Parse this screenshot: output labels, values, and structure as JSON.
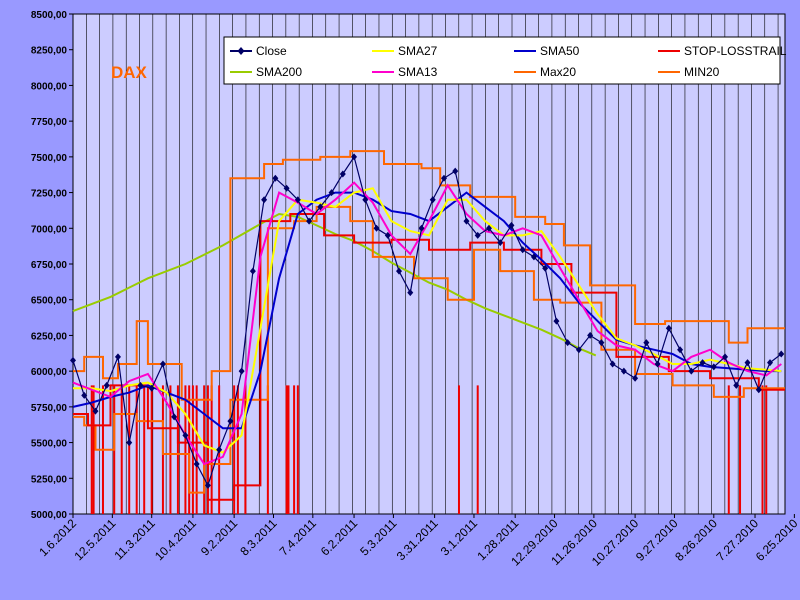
{
  "chart_data": {
    "type": "line",
    "title": "DAX",
    "ylim": [
      5000,
      8500
    ],
    "yticks": [
      "8500,00",
      "8250,00",
      "8000,00",
      "7750,00",
      "7500,00",
      "7250,00",
      "7000,00",
      "6750,00",
      "6500,00",
      "6250,00",
      "6000,00",
      "5750,00",
      "5500,00",
      "5250,00",
      "5000,00"
    ],
    "ytick_values": [
      8500,
      8250,
      8000,
      7750,
      7500,
      7250,
      7000,
      6750,
      6500,
      6250,
      6000,
      5750,
      5500,
      5250,
      5000
    ],
    "xlim": [
      0,
      380
    ],
    "x_tick_labels": [
      "1.6.2012",
      "12.5.2011",
      "11.3.2011",
      "10.4.2011",
      "9.2.2011",
      "8.3.2011",
      "7.4.2011",
      "6.2.2011",
      "5.3.2011",
      "3.31.2011",
      "3.1.2011",
      "1.28.2011",
      "12.29.2010",
      "11.26.2010",
      "10.27.2010",
      "9.27.2010",
      "8.26.2010",
      "7.27.2010",
      "6.25.2010"
    ],
    "x_tick_positions": [
      0,
      21,
      42,
      64,
      86,
      107,
      128,
      150,
      171,
      193,
      214,
      236,
      257,
      278,
      300,
      321,
      342,
      364,
      385
    ],
    "legend": [
      "Close",
      "SMA27",
      "SMA50",
      "STOP-LOSSTRAIL",
      "SMA200",
      "SMA13",
      "Max20",
      "MIN20"
    ],
    "colors": {
      "Close": "#000066",
      "SMA27": "#ffff00",
      "SMA50": "#0000cc",
      "STOP-LOSSTRAIL": "#ee0000",
      "SMA200": "#99cc00",
      "SMA13": "#ff00cc",
      "Max20": "#ff6600",
      "MIN20": "#ff6600",
      "plot_bg": "#ccccff",
      "page_bg": "#9999ff",
      "title": "#ff6600"
    },
    "series": [
      {
        "name": "Close",
        "x": [
          0,
          6,
          12,
          18,
          24,
          30,
          36,
          42,
          48,
          54,
          60,
          66,
          72,
          78,
          84,
          90,
          96,
          102,
          108,
          114,
          120,
          126,
          132,
          138,
          144,
          150,
          156,
          162,
          168,
          174,
          180,
          186,
          192,
          198,
          204,
          210,
          216,
          222,
          228,
          234,
          240,
          246,
          252,
          258,
          264,
          270,
          276,
          282,
          288,
          294,
          300,
          306,
          312,
          318,
          324,
          330,
          336,
          342,
          348,
          354,
          360,
          366,
          372,
          378
        ],
        "values": [
          6075,
          5830,
          5720,
          5900,
          6100,
          5500,
          5900,
          5880,
          6050,
          5680,
          5550,
          5350,
          5200,
          5450,
          5650,
          6000,
          6700,
          7200,
          7350,
          7280,
          7200,
          7050,
          7150,
          7250,
          7380,
          7500,
          7200,
          7000,
          6950,
          6700,
          6550,
          7000,
          7200,
          7350,
          7400,
          7050,
          6950,
          7000,
          6900,
          7020,
          6850,
          6800,
          6720,
          6350,
          6200,
          6150,
          6250,
          6200,
          6050,
          6000,
          5950,
          6200,
          6050,
          6300,
          6150,
          6000,
          6060,
          6030,
          6100,
          5900,
          6060,
          5870,
          6060,
          6120
        ]
      },
      {
        "name": "SMA13",
        "x": [
          0,
          10,
          20,
          30,
          40,
          50,
          60,
          70,
          80,
          90,
          100,
          110,
          120,
          130,
          140,
          150,
          160,
          170,
          180,
          190,
          200,
          210,
          220,
          230,
          240,
          250,
          260,
          270,
          280,
          290,
          300,
          310,
          320,
          330,
          340,
          350,
          360,
          370,
          378
        ],
        "values": [
          5920,
          5870,
          5820,
          5930,
          5980,
          5780,
          5550,
          5350,
          5400,
          5700,
          6800,
          7250,
          7180,
          7100,
          7200,
          7320,
          7180,
          6950,
          6820,
          7050,
          7300,
          7100,
          6980,
          6950,
          7000,
          6950,
          6720,
          6500,
          6280,
          6180,
          6150,
          6050,
          6000,
          6100,
          6150,
          6060,
          6000,
          5970,
          6050
        ]
      },
      {
        "name": "SMA27",
        "x": [
          0,
          10,
          20,
          30,
          40,
          50,
          60,
          70,
          80,
          90,
          100,
          110,
          120,
          130,
          140,
          150,
          160,
          170,
          180,
          190,
          200,
          210,
          220,
          230,
          240,
          250,
          260,
          270,
          280,
          290,
          300,
          310,
          320,
          330,
          340,
          350,
          360,
          370,
          378
        ],
        "values": [
          5880,
          5880,
          5860,
          5900,
          5920,
          5850,
          5700,
          5480,
          5430,
          5550,
          6300,
          7050,
          7200,
          7180,
          7150,
          7250,
          7280,
          7050,
          6980,
          6950,
          7200,
          7200,
          7050,
          6950,
          6950,
          6980,
          6800,
          6600,
          6400,
          6230,
          6180,
          6120,
          6050,
          6050,
          6080,
          6050,
          6020,
          6010,
          6000
        ]
      },
      {
        "name": "SMA50",
        "x": [
          0,
          10,
          20,
          30,
          40,
          50,
          60,
          70,
          80,
          90,
          100,
          110,
          120,
          130,
          140,
          150,
          160,
          170,
          180,
          190,
          200,
          210,
          220,
          230,
          240,
          250,
          260,
          270,
          280,
          290,
          300,
          310,
          320,
          330,
          340,
          350,
          360,
          370,
          378
        ],
        "values": [
          5750,
          5780,
          5820,
          5850,
          5900,
          5850,
          5800,
          5700,
          5600,
          5600,
          6000,
          6650,
          7100,
          7200,
          7250,
          7250,
          7200,
          7120,
          7100,
          7050,
          7150,
          7250,
          7150,
          7050,
          6900,
          6780,
          6650,
          6480,
          6350,
          6220,
          6180,
          6150,
          6120,
          6050,
          6030,
          6020,
          6010,
          6000,
          6000
        ]
      },
      {
        "name": "SMA200",
        "x": [
          0,
          20,
          40,
          60,
          80,
          100,
          110,
          120,
          130,
          140,
          150,
          160,
          170,
          180,
          190,
          200,
          210,
          220,
          230,
          240,
          250,
          260,
          270,
          279
        ],
        "values": [
          6420,
          6520,
          6650,
          6750,
          6880,
          7030,
          7100,
          7080,
          7020,
          6960,
          6910,
          6840,
          6760,
          6690,
          6620,
          6570,
          6500,
          6440,
          6390,
          6340,
          6290,
          6230,
          6160,
          6110
        ]
      },
      {
        "name": "Max20",
        "x": [
          0,
          6,
          6,
          16,
          16,
          24,
          24,
          34,
          34,
          40,
          40,
          58,
          58,
          74,
          74,
          84,
          84,
          102,
          102,
          112,
          112,
          132,
          132,
          148,
          148,
          166,
          166,
          186,
          186,
          196,
          196,
          212,
          212,
          236,
          236,
          252,
          252,
          262,
          262,
          276,
          276,
          300,
          300,
          316,
          316,
          350,
          350,
          360,
          360,
          380
        ],
        "values": [
          6000,
          6000,
          6100,
          6100,
          5950,
          5950,
          6050,
          6050,
          6350,
          6350,
          6050,
          6050,
          5800,
          5800,
          6000,
          6000,
          7350,
          7350,
          7450,
          7450,
          7480,
          7480,
          7500,
          7500,
          7540,
          7540,
          7450,
          7450,
          7420,
          7420,
          7300,
          7300,
          7220,
          7220,
          7080,
          7080,
          7030,
          7030,
          6880,
          6880,
          6600,
          6600,
          6330,
          6330,
          6350,
          6350,
          6200,
          6200,
          6300,
          6300
        ]
      },
      {
        "name": "MIN20",
        "x": [
          0,
          6,
          6,
          12,
          12,
          22,
          22,
          34,
          34,
          48,
          48,
          62,
          62,
          70,
          70,
          84,
          84,
          104,
          104,
          118,
          118,
          130,
          130,
          148,
          148,
          160,
          160,
          182,
          182,
          200,
          200,
          214,
          214,
          228,
          228,
          246,
          246,
          260,
          260,
          282,
          282,
          300,
          300,
          320,
          320,
          342,
          342,
          358,
          358,
          380
        ],
        "values": [
          5680,
          5680,
          5620,
          5620,
          5450,
          5450,
          5700,
          5700,
          5650,
          5650,
          5420,
          5420,
          5150,
          5150,
          5350,
          5350,
          5800,
          5800,
          7000,
          7000,
          7050,
          7050,
          7150,
          7150,
          7050,
          7050,
          6800,
          6800,
          6650,
          6650,
          6500,
          6500,
          6850,
          6850,
          6700,
          6700,
          6500,
          6500,
          6480,
          6480,
          6150,
          6150,
          5980,
          5980,
          5900,
          5900,
          5820,
          5820,
          5880,
          5880
        ]
      },
      {
        "name": "STOP-LOSSTRAIL",
        "x": [
          0,
          8,
          8,
          20,
          20,
          40,
          40,
          56,
          56,
          72,
          72,
          86,
          86,
          100,
          100,
          116,
          116,
          134,
          134,
          150,
          150,
          170,
          170,
          190,
          190,
          212,
          212,
          230,
          230,
          250,
          250,
          266,
          266,
          290,
          290,
          318,
          318,
          340,
          340,
          366,
          366,
          380
        ],
        "values": [
          5700,
          5700,
          5620,
          5620,
          5900,
          5900,
          5600,
          5600,
          5500,
          5500,
          5100,
          5100,
          5200,
          5200,
          7050,
          7050,
          7100,
          7100,
          6950,
          6950,
          6900,
          6900,
          6920,
          6920,
          6850,
          6850,
          6900,
          6900,
          6850,
          6850,
          6750,
          6750,
          6550,
          6550,
          6100,
          6100,
          6000,
          6000,
          5950,
          5950,
          5870,
          5870
        ]
      }
    ],
    "stop_drops_x": [
      10,
      11,
      16,
      22,
      26,
      30,
      34,
      38,
      42,
      48,
      52,
      56,
      60,
      62,
      64,
      66,
      70,
      72,
      74,
      78,
      86,
      88,
      92,
      104,
      114,
      115,
      118,
      120,
      206,
      216,
      350,
      356,
      368,
      370
    ]
  }
}
